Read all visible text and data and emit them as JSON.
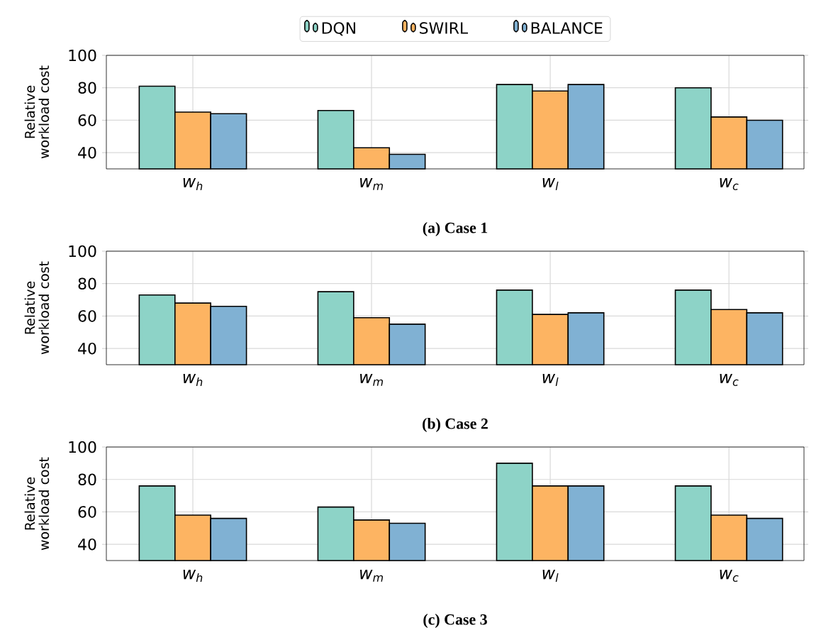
{
  "chart_data": [
    {
      "type": "bar",
      "title": "**(a) Case 1**",
      "ylabel": "Relative workload cost",
      "categories": [
        "w$_{h}$",
        "w$_{m}$",
        "w$_{l}$",
        "w$_{c}$"
      ],
      "ylim": [
        30,
        100
      ],
      "yticks": [
        40,
        60,
        80,
        100
      ],
      "grid": true,
      "legend": "top",
      "series": [
        {
          "name": "DQN",
          "color": "#8dd3c7",
          "values": [
            81,
            66,
            82,
            80
          ]
        },
        {
          "name": "SWIRL",
          "color": "#fdb462",
          "values": [
            65,
            43,
            78,
            62
          ]
        },
        {
          "name": "BALANCE",
          "color": "#80b1d3",
          "values": [
            64,
            39,
            82,
            60
          ]
        }
      ]
    },
    {
      "type": "bar",
      "title": "**(b) Case 2**",
      "ylabel": "Relative workload cost",
      "categories": [
        "w$_{h}$",
        "w$_{m}$",
        "w$_{l}$",
        "w$_{c}$"
      ],
      "ylim": [
        30,
        100
      ],
      "yticks": [
        40,
        60,
        80,
        100
      ],
      "grid": true,
      "series": [
        {
          "color": "#8dd3c7",
          "values": [
            73,
            75,
            76,
            76
          ]
        },
        {
          "color": "#fdb462",
          "values": [
            68,
            59,
            61,
            64
          ]
        },
        {
          "color": "#80b1d3",
          "values": [
            66,
            55,
            62,
            62
          ]
        }
      ]
    },
    {
      "type": "bar",
      "title": "**(c) Case 3**",
      "ylabel": "Relative workload cost",
      "categories": [
        "w$_{h}$",
        "w$_{m}$",
        "w$_{l}$",
        "w$_{c}$"
      ],
      "ylim": [
        30,
        100
      ],
      "yticks": [
        40,
        60,
        80,
        100
      ],
      "grid": true,
      "series": [
        {
          "color": "#8dd3c7",
          "values": [
            76,
            63,
            90,
            76
          ]
        },
        {
          "color": "#fdb462",
          "values": [
            58,
            55,
            76,
            58
          ]
        },
        {
          "color": "#80b1d3",
          "values": [
            56,
            53,
            76,
            56
          ]
        }
      ]
    }
  ]
}
